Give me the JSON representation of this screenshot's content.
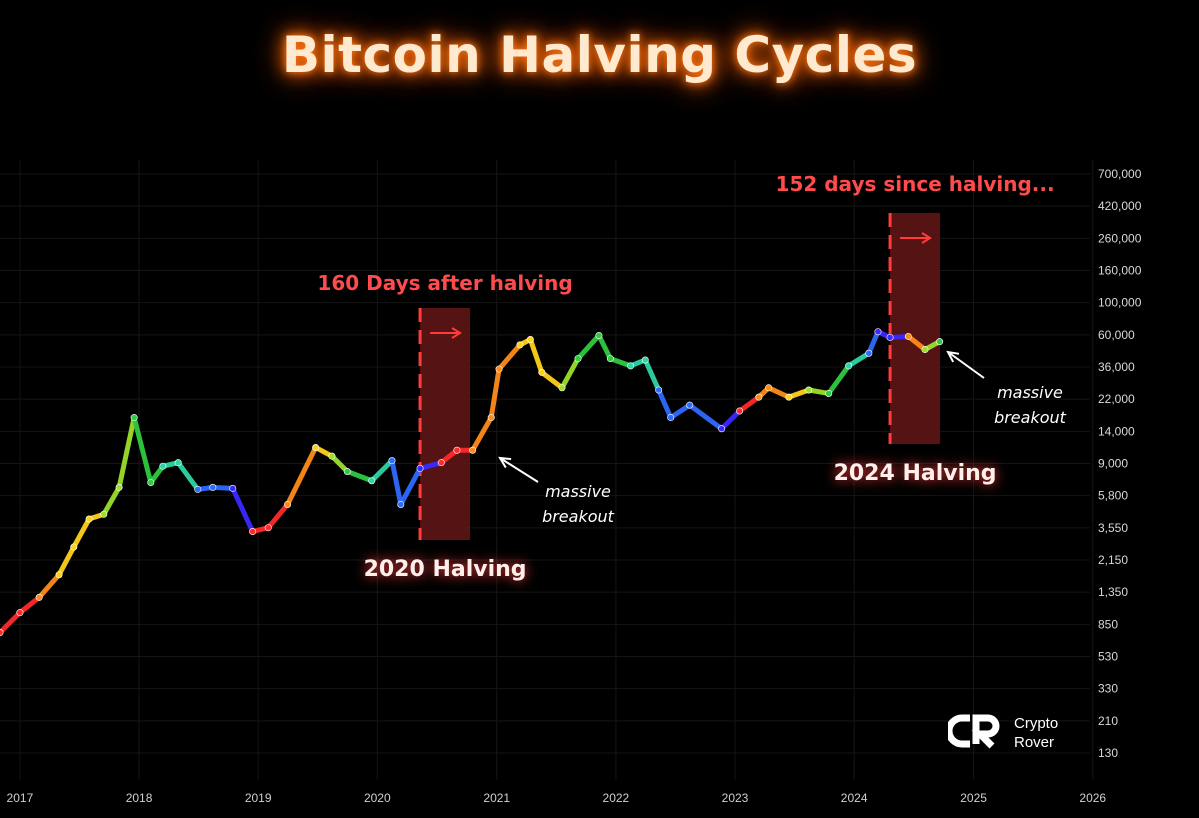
{
  "chart_data": {
    "type": "line",
    "title": "Bitcoin Halving Cycles",
    "yscale": "log",
    "ylim": [
      110,
      800000
    ],
    "xlim": [
      "2016-11-01",
      "2026-03-01"
    ],
    "y_ticks": [
      "700,000",
      "420,000",
      "260,000",
      "160,000",
      "100,000",
      "60,000",
      "36,000",
      "22,000",
      "14,000",
      "9,000",
      "5,800",
      "3,550",
      "2,150",
      "1,350",
      "850",
      "530",
      "330",
      "210",
      "130"
    ],
    "x_ticks": [
      "2017",
      "2018",
      "2019",
      "2020",
      "2021",
      "2022",
      "2023",
      "2024",
      "2025",
      "2026"
    ],
    "series": [
      {
        "x": [
          "2016-11-01",
          "2017-01-01",
          "2017-03-01",
          "2017-05-01",
          "2017-06-15",
          "2017-08-01",
          "2017-09-15",
          "2017-11-01",
          "2017-12-17",
          "2018-02-06",
          "2018-03-15",
          "2018-05-01",
          "2018-06-30",
          "2018-08-15",
          "2018-10-15",
          "2018-12-15",
          "2019-02-01",
          "2019-04-01",
          "2019-06-26",
          "2019-08-15",
          "2019-10-01",
          "2019-12-15",
          "2020-02-15",
          "2020-03-13",
          "2020-05-11",
          "2020-07-15",
          "2020-09-01",
          "2020-10-19",
          "2020-12-15",
          "2021-01-08",
          "2021-03-13",
          "2021-04-14",
          "2021-05-19",
          "2021-07-20",
          "2021-09-07",
          "2021-11-10",
          "2021-12-15",
          "2022-02-15",
          "2022-04-01",
          "2022-05-12",
          "2022-06-18",
          "2022-08-15",
          "2022-11-21",
          "2023-01-15",
          "2023-03-15",
          "2023-04-14",
          "2023-06-15",
          "2023-08-15",
          "2023-10-15",
          "2023-12-15",
          "2024-02-15",
          "2024-03-14",
          "2024-04-20",
          "2024-06-15",
          "2024-08-05",
          "2024-09-19"
        ],
        "y": [
          700,
          950,
          1200,
          1700,
          2600,
          4000,
          4300,
          6500,
          19000,
          7000,
          9000,
          9500,
          6300,
          6500,
          6400,
          3300,
          3500,
          5000,
          12000,
          10500,
          8300,
          7200,
          9800,
          5000,
          8700,
          9500,
          11500,
          11500,
          19000,
          40000,
          58000,
          63000,
          38000,
          30000,
          47000,
          67000,
          47000,
          42000,
          46000,
          29000,
          19000,
          23000,
          16000,
          21000,
          26000,
          30000,
          26000,
          29000,
          27500,
          42000,
          51000,
          71000,
          65000,
          66000,
          54000,
          61000
        ]
      }
    ],
    "halvings": [
      {
        "date": "2020-05-11",
        "label": "2020 Halving",
        "note": "160 Days after halving",
        "callout": [
          "massive",
          "breakout"
        ]
      },
      {
        "date": "2024-04-20",
        "label": "2024 Halving",
        "note": "152 days since halving...",
        "callout": [
          "massive",
          "breakout"
        ]
      }
    ],
    "colors": {
      "background": "#000000",
      "band": "#5e1515",
      "band_line": "#ff3b3b",
      "annotation": "#ff4b4b",
      "spectrum": [
        "#ff2a2a",
        "#ff8c1a",
        "#ffd21a",
        "#9be02a",
        "#2ecc40",
        "#2ed5a6",
        "#2e6bff",
        "#3a2aff"
      ]
    }
  },
  "brand": {
    "line1": "Crypto",
    "line2": "Rover",
    "logo_icon": "crypto-rover-logo-icon"
  }
}
